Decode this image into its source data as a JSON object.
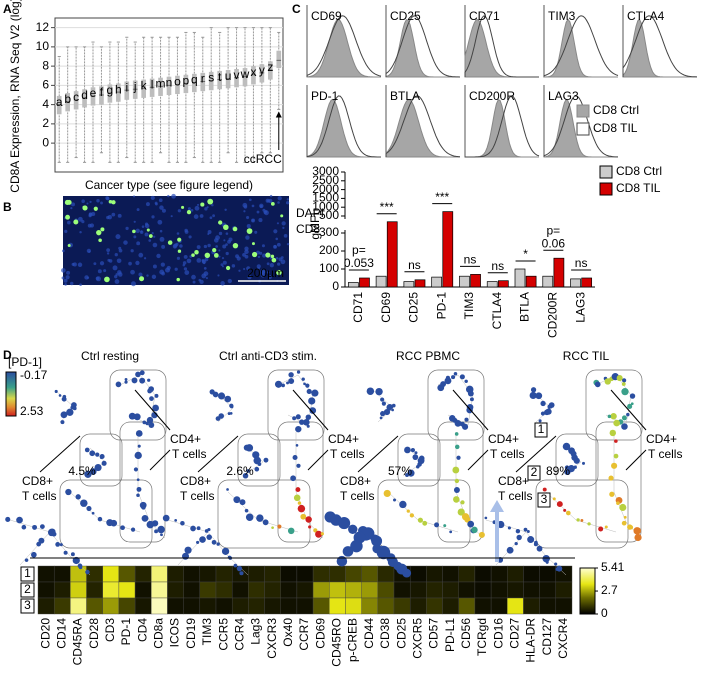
{
  "panel_labels": [
    "A",
    "B",
    "C",
    "D"
  ],
  "micrograph": {
    "channels": [
      "DAPI",
      "CD8"
    ],
    "scale_bar": "200µm"
  },
  "histograms": {
    "markers": [
      "CD69",
      "CD25",
      "CD71",
      "TIM3",
      "CTLA4",
      "PD-1",
      "BTLA",
      "CD200R",
      "LAG3"
    ]
  },
  "spade": {
    "colorbar_title": "[PD-1]",
    "colorbar_range": [
      -0.17,
      2.53
    ],
    "panels": [
      {
        "title": "Ctrl resting",
        "cd8_pct": "4.5%"
      },
      {
        "title": "Ctrl anti-CD3 stim.",
        "cd8_pct": "2.6%"
      },
      {
        "title": "RCC PBMC",
        "cd8_pct": "57%"
      },
      {
        "title": "RCC TIL",
        "cd8_pct": "89%"
      }
    ],
    "cd8_label": [
      "CD8+",
      "T cells"
    ],
    "cd4_label": [
      "CD4+",
      "T cells"
    ],
    "cluster_ids": [
      "1",
      "2",
      "3"
    ]
  },
  "chart_data": [
    {
      "type": "box",
      "ylabel": "CD8A Expression, RNA Seq V2 (log)",
      "xlabel": "Cancer type (see figure legend)",
      "color": "#bdbdbd",
      "grid": true,
      "categories": [
        "a",
        "b",
        "c",
        "d",
        "e",
        "f",
        "g",
        "h",
        "i",
        "j",
        "k",
        "l",
        "m",
        "n",
        "o",
        "p",
        "q",
        "r",
        "s",
        "t",
        "u",
        "v",
        "w",
        "x",
        "y",
        "z",
        "ccRCC"
      ],
      "median": [
        4.0,
        4.3,
        4.5,
        4.7,
        4.9,
        5.0,
        5.2,
        5.3,
        5.5,
        5.6,
        5.7,
        5.8,
        5.9,
        6.0,
        6.1,
        6.2,
        6.3,
        6.4,
        6.5,
        6.6,
        6.7,
        6.8,
        6.9,
        7.1,
        7.3,
        7.6,
        8.6
      ],
      "q1": [
        3.0,
        3.3,
        3.5,
        3.7,
        3.9,
        4.0,
        4.2,
        4.3,
        4.5,
        4.6,
        4.7,
        4.8,
        4.9,
        5.0,
        5.1,
        5.2,
        5.3,
        5.4,
        5.5,
        5.6,
        5.7,
        5.8,
        5.9,
        6.1,
        6.3,
        6.6,
        7.8
      ],
      "q3": [
        4.9,
        5.2,
        5.4,
        5.6,
        5.8,
        5.9,
        6.1,
        6.2,
        6.4,
        6.5,
        6.6,
        6.7,
        6.8,
        6.9,
        7.0,
        7.1,
        7.2,
        7.3,
        7.4,
        7.5,
        7.6,
        7.7,
        7.8,
        8.0,
        8.2,
        8.5,
        9.6
      ],
      "whisker_low": [
        -2,
        -2,
        -1.5,
        -2,
        -2,
        -1,
        -2,
        -2,
        -1.5,
        -2,
        -2,
        -2,
        -1,
        -2,
        -2,
        -2,
        -1.5,
        -2,
        -2,
        -2,
        -1,
        -2,
        -2,
        -2,
        -1,
        -1,
        3.5
      ],
      "whisker_high": [
        9,
        10,
        10,
        10,
        10.5,
        10,
        10.5,
        10.5,
        11,
        10.5,
        11,
        11,
        11,
        11,
        11,
        11.5,
        11.5,
        11,
        12,
        11.5,
        12,
        12,
        12,
        12,
        12,
        12,
        11.5
      ],
      "ylim": [
        -3,
        13
      ],
      "yticks": [
        0,
        2,
        4,
        6,
        8,
        10,
        12
      ]
    },
    {
      "type": "bar",
      "ylabel": "gMFI",
      "categories": [
        "CD71",
        "CD69",
        "CD25",
        "PD-1",
        "TIM3",
        "CTLA4",
        "BTLA",
        "CD200R",
        "LAG3"
      ],
      "series": [
        {
          "name": "CD8 Ctrl",
          "color": "#cccccc",
          "values": [
            25,
            60,
            30,
            55,
            60,
            30,
            100,
            60,
            45
          ]
        },
        {
          "name": "CD8 TIL",
          "color": "#d40000",
          "values": [
            50,
            450,
            40,
            750,
            70,
            35,
            60,
            160,
            50
          ]
        }
      ],
      "ylim": [
        0,
        3000
      ],
      "yticks": [
        0,
        100,
        200,
        300,
        500,
        1000,
        1500,
        2000,
        2500,
        3000
      ],
      "axis_break": [
        300,
        500
      ],
      "significance": [
        [
          "p=",
          "0.053"
        ],
        [
          "***"
        ],
        [
          "ns"
        ],
        [
          "***"
        ],
        [
          "ns"
        ],
        [
          "ns"
        ],
        [
          "*"
        ],
        [
          "p=",
          "0.06"
        ],
        [
          "ns"
        ]
      ]
    },
    {
      "type": "heatmap",
      "rows": [
        "1",
        "2",
        "3"
      ],
      "columns": [
        "CD20",
        "CD14",
        "CD45RA",
        "CD28",
        "CD3",
        "PD-1",
        "CD4",
        "CD8a",
        "ICOS",
        "CD19",
        "TIM3",
        "CCR5",
        "CCR4",
        "Lag3",
        "CXCR3",
        "Ox40",
        "CCR7",
        "CD69",
        "CD45RO",
        "p-CREB",
        "CD44",
        "CD38",
        "CD25",
        "CXCR5",
        "CD57",
        "PD-L1",
        "CD56",
        "TCRgd",
        "CD16",
        "CD27",
        "HLA-DR",
        "CD127",
        "CXCR4"
      ],
      "values": [
        [
          0.3,
          0.3,
          3.0,
          0.8,
          3.5,
          1.5,
          0.6,
          4.5,
          0.5,
          0.3,
          0.4,
          0.6,
          0.4,
          0.5,
          0.6,
          0.2,
          0.2,
          0.8,
          0.8,
          1.2,
          1.5,
          0.7,
          0.3,
          0.2,
          0.4,
          0.3,
          0.6,
          0.2,
          0.3,
          0.5,
          0.2,
          0.2,
          0.3
        ],
        [
          0.3,
          0.5,
          3.2,
          0.6,
          3.8,
          3.5,
          0.3,
          4.8,
          0.5,
          0.3,
          1.0,
          0.8,
          0.3,
          0.8,
          0.6,
          0.3,
          0.4,
          2.5,
          3.0,
          2.8,
          2.5,
          1.3,
          0.3,
          0.4,
          0.6,
          0.5,
          0.3,
          0.2,
          0.3,
          0.4,
          0.3,
          0.3,
          0.5
        ],
        [
          0.5,
          1.0,
          4.6,
          1.5,
          2.5,
          1.2,
          0.4,
          5.2,
          0.3,
          0.3,
          0.4,
          0.3,
          0.5,
          0.6,
          0.4,
          0.3,
          0.3,
          1.5,
          3.5,
          3.4,
          2.2,
          1.5,
          1.0,
          0.5,
          0.9,
          0.5,
          1.5,
          0.3,
          0.3,
          3.5,
          0.5,
          0.3,
          0.3
        ]
      ],
      "clim": [
        0,
        5.41
      ],
      "colorbar_ticks": [
        0,
        2.7,
        5.41
      ]
    }
  ]
}
